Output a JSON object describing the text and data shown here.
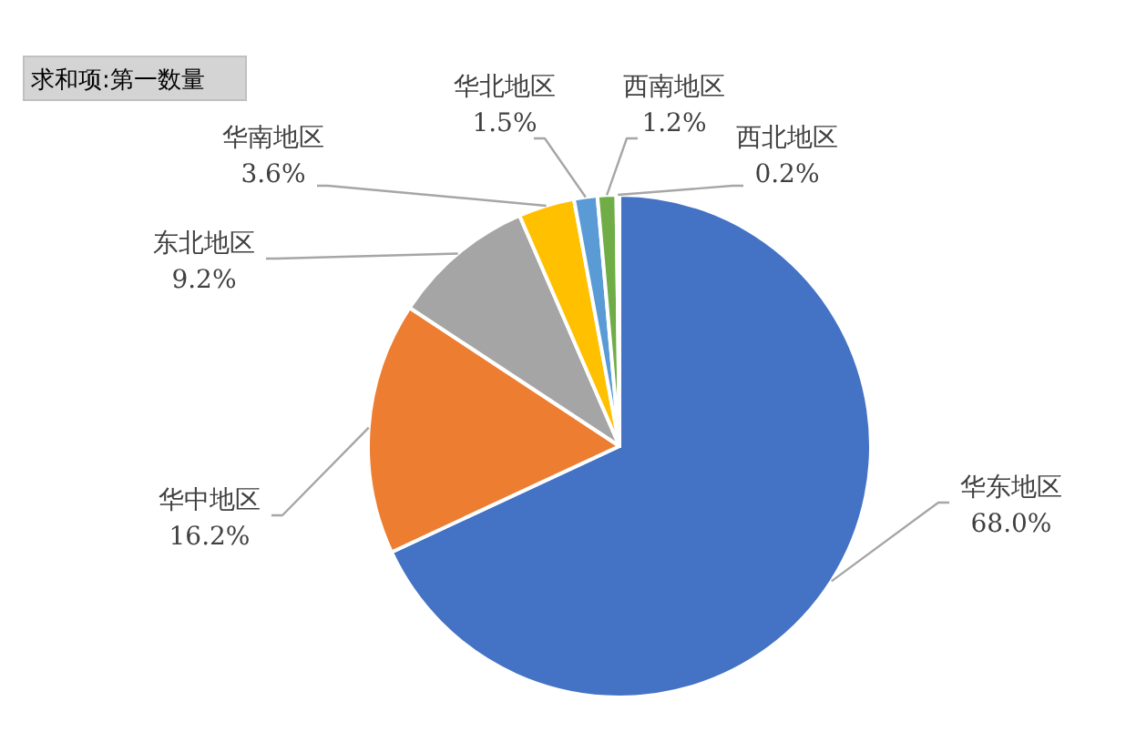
{
  "chart_data": {
    "type": "pie",
    "title": "求和项:第一数量",
    "categories": [
      "华东地区",
      "华中地区",
      "东北地区",
      "华南地区",
      "华北地区",
      "西南地区",
      "西北地区"
    ],
    "values": [
      68.0,
      16.2,
      9.2,
      3.6,
      1.5,
      1.2,
      0.2
    ],
    "colors": [
      "#4472c4",
      "#ed7d31",
      "#a5a5a5",
      "#ffc000",
      "#5b9bd5",
      "#70ad47",
      "#264478"
    ],
    "value_labels": [
      "68.0%",
      "16.2%",
      "9.2%",
      "3.6%",
      "1.5%",
      "1.2%",
      "0.2%"
    ]
  }
}
